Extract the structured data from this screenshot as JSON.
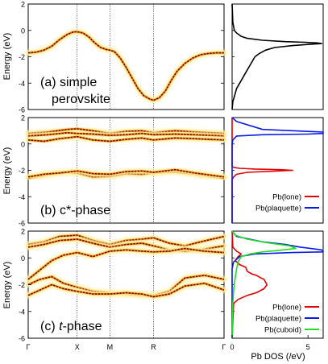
{
  "colors": {
    "band_dark": "#5a0000",
    "band_mid": "#e8781a",
    "band_light": "#ffe27a",
    "band_glow": "#fff2b0",
    "dos_black": "#000000",
    "dos_red": "#e00000",
    "dos_blue": "#0a1be6",
    "dos_green": "#22dd22"
  },
  "chart_data": [
    {
      "type": "line",
      "panel_id": "a",
      "label": "(a) simple perovskite",
      "label_lines": [
        "(a) simple",
        "perovskite"
      ],
      "ylabel": "Energy (eV)",
      "xlabel": "",
      "ylim": [
        -6,
        2
      ],
      "yticks": [
        "2",
        "0",
        "-2",
        "-4",
        "-6"
      ],
      "yticks_values": [
        2,
        0,
        -2,
        -4,
        -6
      ],
      "k_points": [
        "Γ",
        "X",
        "M",
        "R",
        "Γ"
      ],
      "k_positions": [
        0,
        0.25,
        0.417,
        0.64,
        1.0
      ],
      "grid": "vertical dotted lines at X, M, R",
      "series": [
        {
          "x": [
            0,
            0.04,
            0.08,
            0.12,
            0.16,
            0.2,
            0.23,
            0.25,
            0.28,
            0.31,
            0.34,
            0.37,
            0.4,
            0.417,
            0.44,
            0.47,
            0.5,
            0.53,
            0.56,
            0.59,
            0.62,
            0.64,
            0.67,
            0.7,
            0.73,
            0.76,
            0.8,
            0.84,
            0.88,
            0.92,
            0.96,
            1.0
          ],
          "y": [
            -1.7,
            -1.65,
            -1.5,
            -1.2,
            -0.7,
            -0.3,
            -0.12,
            -0.1,
            -0.2,
            -0.5,
            -0.95,
            -1.3,
            -1.45,
            -1.5,
            -1.6,
            -2.1,
            -2.8,
            -3.6,
            -4.4,
            -4.95,
            -5.2,
            -5.3,
            -5.1,
            -4.6,
            -3.8,
            -3.1,
            -2.5,
            -2.1,
            -1.85,
            -1.75,
            -1.7,
            -1.7
          ]
        }
      ]
    },
    {
      "type": "line",
      "panel_id": "b",
      "label": "(b) c*-phase",
      "ylabel": "Energy (eV)",
      "xlabel": "",
      "ylim": [
        -6,
        2
      ],
      "yticks": [
        "2",
        "0",
        "-2",
        "-4",
        "-6"
      ],
      "yticks_values": [
        2,
        0,
        -2,
        -4,
        -6
      ],
      "k_points": [
        "Γ",
        "X",
        "M",
        "R",
        "Γ"
      ],
      "k_positions": [
        0,
        0.25,
        0.417,
        0.64,
        1.0
      ],
      "grid": "vertical dotted lines at X, M, R",
      "series": [
        {
          "x": [
            0,
            0.1,
            0.2,
            0.25,
            0.33,
            0.417,
            0.5,
            0.58,
            0.64,
            0.75,
            0.85,
            1.0
          ],
          "y": [
            0.8,
            0.9,
            1.1,
            1.15,
            1.0,
            0.8,
            0.95,
            1.0,
            0.85,
            1.0,
            0.9,
            0.8
          ]
        },
        {
          "x": [
            0,
            0.1,
            0.2,
            0.25,
            0.33,
            0.417,
            0.5,
            0.58,
            0.64,
            0.75,
            0.85,
            1.0
          ],
          "y": [
            0.6,
            0.7,
            0.85,
            0.8,
            0.75,
            0.65,
            0.7,
            0.8,
            0.7,
            0.75,
            0.7,
            0.6
          ]
        },
        {
          "x": [
            0,
            0.08,
            0.16,
            0.25,
            0.33,
            0.417,
            0.5,
            0.58,
            0.64,
            0.75,
            0.85,
            1.0
          ],
          "y": [
            0.3,
            0.2,
            0.4,
            0.55,
            0.3,
            0.2,
            0.35,
            0.45,
            0.3,
            0.45,
            0.4,
            0.3
          ]
        },
        {
          "x": [
            0,
            0.08,
            0.16,
            0.25,
            0.33,
            0.417,
            0.5,
            0.58,
            0.64,
            0.75,
            0.85,
            1.0
          ],
          "y": [
            -2.6,
            -2.4,
            -2.15,
            -2.2,
            -2.5,
            -2.45,
            -2.25,
            -2.3,
            -2.2,
            -2.1,
            -2.3,
            -2.6
          ]
        },
        {
          "x": [
            0,
            0.08,
            0.16,
            0.25,
            0.33,
            0.417,
            0.5,
            0.58,
            0.64,
            0.75,
            0.85,
            1.0
          ],
          "y": [
            -2.5,
            -2.3,
            -2.2,
            -2.05,
            -2.25,
            -2.3,
            -2.1,
            -2.05,
            -2.15,
            -1.95,
            -2.2,
            -2.5
          ]
        }
      ]
    },
    {
      "type": "line",
      "panel_id": "c",
      "label": "(c) t-phase",
      "label_prefix": "(c) ",
      "label_italic": "t",
      "label_suffix": "-phase",
      "ylabel": "Energy (eV)",
      "xlabel": "",
      "ylim": [
        -6,
        2
      ],
      "yticks": [
        "2",
        "0",
        "-2",
        "-4",
        "-6"
      ],
      "yticks_values": [
        2,
        0,
        -2,
        -4,
        -6
      ],
      "k_points": [
        "Γ",
        "X",
        "M",
        "R",
        "Γ"
      ],
      "k_positions": [
        0,
        0.25,
        0.417,
        0.64,
        1.0
      ],
      "grid": "vertical dotted lines at X, M, R",
      "series": [
        {
          "x": [
            0,
            0.08,
            0.16,
            0.25,
            0.33,
            0.417,
            0.5,
            0.58,
            0.64,
            0.72,
            0.8,
            0.88,
            1.0
          ],
          "y": [
            1.0,
            1.2,
            1.6,
            1.7,
            1.3,
            1.0,
            1.3,
            1.4,
            1.5,
            1.1,
            0.9,
            1.2,
            1.6
          ]
        },
        {
          "x": [
            0,
            0.08,
            0.16,
            0.25,
            0.33,
            0.417,
            0.5,
            0.58,
            0.64,
            0.72,
            0.8,
            0.88,
            1.0
          ],
          "y": [
            0.8,
            1.0,
            1.3,
            1.4,
            1.1,
            0.8,
            1.0,
            1.1,
            0.9,
            0.6,
            0.5,
            0.6,
            0.9
          ]
        },
        {
          "x": [
            0,
            0.06,
            0.12,
            0.18,
            0.25,
            0.33,
            0.417,
            0.5,
            0.58,
            0.64,
            0.72,
            0.8,
            0.9,
            1.0
          ],
          "y": [
            -1.6,
            -0.9,
            -0.2,
            0.2,
            0.4,
            0.1,
            0.5,
            0.6,
            0.5,
            0.45,
            0.5,
            0.7,
            0.5,
            0.4
          ]
        },
        {
          "x": [
            0,
            0.06,
            0.12,
            0.18,
            0.25,
            0.33,
            0.417,
            0.5,
            0.58,
            0.64,
            0.72,
            0.8,
            0.9,
            1.0
          ],
          "y": [
            -2.0,
            -1.6,
            -1.4,
            -1.9,
            -2.2,
            -2.5,
            -2.6,
            -2.7,
            -2.8,
            -2.8,
            -2.5,
            -1.5,
            -1.3,
            -1.6
          ]
        },
        {
          "x": [
            0,
            0.06,
            0.12,
            0.18,
            0.25,
            0.33,
            0.417,
            0.5,
            0.58,
            0.64,
            0.72,
            0.8,
            0.9,
            1.0
          ],
          "y": [
            -2.8,
            -2.4,
            -2.0,
            -2.3,
            -2.5,
            -2.7,
            -2.7,
            -2.6,
            -2.7,
            -2.9,
            -2.7,
            -2.1,
            -1.9,
            -2.4
          ]
        }
      ]
    },
    {
      "type": "line",
      "panel_id": "a_dos",
      "xlabel": "",
      "xlim": [
        0,
        6
      ],
      "ylim": [
        -6,
        2
      ],
      "grid": "none",
      "legend": [],
      "series": [
        {
          "color": "#000000",
          "x": [
            0,
            0.05,
            0.15,
            0.3,
            0.6,
            1.0,
            2.0,
            3.5,
            4.8,
            5.6,
            5.9,
            5.2,
            4.0,
            2.8,
            2.2,
            1.8,
            1.5,
            1.3,
            1.1,
            0.9,
            0.7,
            0.5,
            0.3,
            0.2,
            0.1,
            0.05,
            0
          ],
          "y": [
            2,
            0.6,
            0.0,
            -0.2,
            -0.45,
            -0.6,
            -0.75,
            -0.85,
            -0.9,
            -0.95,
            -1.0,
            -1.05,
            -1.15,
            -1.3,
            -1.5,
            -1.75,
            -2.0,
            -2.4,
            -2.8,
            -3.2,
            -3.6,
            -4.0,
            -4.4,
            -4.8,
            -5.2,
            -5.4,
            -6
          ]
        }
      ]
    },
    {
      "type": "line",
      "panel_id": "b_dos",
      "xlabel": "",
      "xlim": [
        0,
        6
      ],
      "ylim": [
        -6,
        2
      ],
      "grid": "none",
      "legend": [
        {
          "name": "Pb(lone)",
          "color": "#e00000"
        },
        {
          "name": "Pb(plaquette)",
          "color": "#0a1be6"
        }
      ],
      "series": [
        {
          "name": "Pb(lone)",
          "color": "#e00000",
          "x": [
            0,
            0,
            0.05,
            0.2,
            0.5,
            1.5,
            3.2,
            4.0,
            3.0,
            1.0,
            0.3,
            0.1,
            0,
            0
          ],
          "y": [
            2,
            -1.7,
            -1.75,
            -1.8,
            -1.85,
            -1.9,
            -1.95,
            -2.0,
            -2.05,
            -2.15,
            -2.3,
            -2.5,
            -2.7,
            -6
          ]
        },
        {
          "name": "Pb(plaquette)",
          "color": "#0a1be6",
          "x": [
            0,
            0.05,
            0.3,
            2.0,
            5.0,
            6.0,
            6.0,
            5.0,
            2.0,
            0.3,
            0.05,
            0,
            0
          ],
          "y": [
            2,
            1.95,
            1.7,
            1.1,
            0.95,
            0.9,
            0.8,
            0.75,
            0.7,
            0.6,
            0.3,
            0.0,
            -6
          ]
        }
      ]
    },
    {
      "type": "line",
      "panel_id": "c_dos",
      "xlabel": "Pb DOS (/eV)",
      "xticks": [
        "0",
        "5"
      ],
      "xticks_values": [
        0,
        5
      ],
      "xlim": [
        0,
        6
      ],
      "ylim": [
        -6,
        2
      ],
      "grid": "none",
      "legend": [
        {
          "name": "Pb(lone)",
          "color": "#e00000"
        },
        {
          "name": "Pb(plaquette)",
          "color": "#0a1be6"
        },
        {
          "name": "Pb(cuboid)",
          "color": "#22dd22"
        }
      ],
      "series": [
        {
          "name": "Pb(lone)",
          "color": "#e00000",
          "x": [
            0,
            0.05,
            0.3,
            0.6,
            0.4,
            0.2,
            0.5,
            0.9,
            1.0,
            1.3,
            1.6,
            1.9,
            2.1,
            2.2,
            2.3,
            2.1,
            1.6,
            1.0,
            0.4,
            0.1,
            0
          ],
          "y": [
            2,
            0.8,
            0.5,
            0.3,
            0.1,
            -0.2,
            -0.5,
            -0.7,
            -1.0,
            -1.2,
            -1.3,
            -1.5,
            -1.6,
            -1.8,
            -2.0,
            -2.3,
            -2.6,
            -2.8,
            -3.1,
            -3.4,
            -6
          ]
        },
        {
          "name": "Pb(plaquette)",
          "color": "#0a1be6",
          "x": [
            0,
            0.3,
            2.0,
            3.5,
            4.5,
            5.9,
            6.0,
            4.0,
            1.5,
            0.5,
            0.1,
            0,
            0
          ],
          "y": [
            2,
            1.6,
            1.2,
            1.0,
            0.8,
            0.6,
            0.45,
            0.4,
            0.3,
            0.1,
            -0.3,
            -0.8,
            -6
          ]
        },
        {
          "name": "Pb(cuboid)",
          "color": "#22dd22",
          "x": [
            0,
            0.2,
            1.0,
            2.5,
            3.8,
            4.2,
            3.0,
            2.0,
            1.2,
            0.6,
            0.4,
            0.3,
            0.2,
            0.1,
            0.05,
            0
          ],
          "y": [
            2,
            1.7,
            1.4,
            1.1,
            0.9,
            0.7,
            0.55,
            0.45,
            0.3,
            0.1,
            -0.3,
            -0.8,
            -1.5,
            -2.4,
            -3.4,
            -6
          ]
        }
      ]
    }
  ]
}
